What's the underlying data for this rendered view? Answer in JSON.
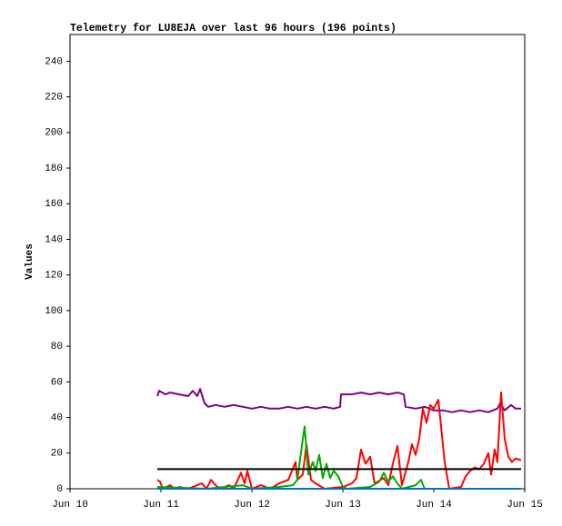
{
  "chart_data": {
    "type": "line",
    "title": "Telemetry for LU8EJA over last 96 hours (196 points)",
    "y_label": "Values",
    "xlim": [
      10,
      15
    ],
    "xticks": [
      {
        "value": 10,
        "label": "Jun 10"
      },
      {
        "value": 11,
        "label": "Jun 11"
      },
      {
        "value": 12,
        "label": "Jun 12"
      },
      {
        "value": 13,
        "label": "Jun 13"
      },
      {
        "value": 14,
        "label": "Jun 14"
      },
      {
        "value": 15,
        "label": "Jun 15"
      }
    ],
    "ylim": [
      0,
      255
    ],
    "yticks": [
      0,
      20,
      40,
      60,
      80,
      100,
      120,
      140,
      160,
      180,
      200,
      220,
      240
    ],
    "grid": false,
    "series": [
      {
        "color": "#800080",
        "x": [
          10.96,
          10.98,
          11.05,
          11.1,
          11.2,
          11.3,
          11.35,
          11.4,
          11.43,
          11.48,
          11.52,
          11.6,
          11.7,
          11.8,
          11.9,
          12.0,
          12.1,
          12.2,
          12.3,
          12.4,
          12.5,
          12.6,
          12.7,
          12.8,
          12.9,
          12.97,
          12.98,
          13.1,
          13.2,
          13.3,
          13.4,
          13.5,
          13.6,
          13.67,
          13.69,
          13.8,
          13.9,
          14.0,
          14.1,
          14.2,
          14.3,
          14.4,
          14.5,
          14.6,
          14.7,
          14.73,
          14.78,
          14.85,
          14.9,
          14.96
        ],
        "values": [
          52,
          55,
          53,
          54,
          53,
          52,
          55,
          52,
          56,
          48,
          46,
          47,
          46,
          47,
          46,
          45,
          46,
          45,
          45,
          46,
          45,
          46,
          45,
          46,
          45,
          46,
          53,
          53,
          54,
          53,
          54,
          53,
          54,
          53,
          46,
          45,
          46,
          44,
          44,
          43,
          44,
          43,
          44,
          43,
          45,
          48,
          44,
          47,
          45,
          45
        ]
      },
      {
        "color": "#ff0000",
        "x": [
          10.96,
          10.99,
          11.02,
          11.1,
          11.15,
          11.2,
          11.3,
          11.45,
          11.5,
          11.55,
          11.6,
          11.65,
          11.75,
          11.8,
          11.88,
          11.92,
          11.95,
          12.0,
          12.1,
          12.2,
          12.3,
          12.4,
          12.48,
          12.5,
          12.56,
          12.6,
          12.65,
          12.7,
          12.8,
          13.0,
          13.1,
          13.15,
          13.2,
          13.25,
          13.3,
          13.35,
          13.45,
          13.5,
          13.55,
          13.6,
          13.65,
          13.72,
          13.76,
          13.8,
          13.84,
          13.88,
          13.92,
          13.96,
          14.0,
          14.05,
          14.08,
          14.12,
          14.17,
          14.3,
          14.35,
          14.4,
          14.45,
          14.5,
          14.55,
          14.6,
          14.63,
          14.67,
          14.7,
          14.74,
          14.78,
          14.82,
          14.86,
          14.9,
          14.96
        ],
        "values": [
          5,
          4,
          0,
          2,
          0,
          1,
          0,
          3,
          0,
          5,
          2,
          0,
          2,
          0,
          9,
          3,
          10,
          0,
          2,
          0,
          3,
          5,
          15,
          5,
          8,
          25,
          5,
          3,
          0,
          1,
          3,
          6,
          22,
          14,
          18,
          3,
          6,
          2,
          14,
          24,
          2,
          15,
          25,
          19,
          28,
          45,
          37,
          47,
          45,
          50,
          35,
          15,
          0,
          1,
          7,
          10,
          12,
          11,
          14,
          20,
          8,
          22,
          15,
          54,
          28,
          18,
          15,
          17,
          16
        ]
      },
      {
        "color": "#00aa00",
        "x": [
          10.96,
          11.5,
          11.9,
          12.0,
          12.3,
          12.45,
          12.5,
          12.56,
          12.58,
          12.62,
          12.67,
          12.7,
          12.74,
          12.78,
          12.82,
          12.86,
          12.9,
          12.95,
          13.0,
          13.05,
          13.3,
          13.4,
          13.45,
          13.5,
          13.55,
          13.6,
          13.65,
          13.8,
          13.86,
          13.9,
          14.96
        ],
        "values": [
          1,
          0,
          2,
          0,
          1,
          2,
          5,
          28,
          35,
          8,
          15,
          10,
          19,
          6,
          14,
          6,
          10,
          7,
          1,
          0,
          1,
          4,
          9,
          4,
          7,
          3,
          0,
          2,
          5,
          0,
          0
        ]
      },
      {
        "color": "#000000",
        "x": [
          10.96,
          14.96
        ],
        "values": [
          11,
          11
        ]
      },
      {
        "color": "#0070c0",
        "x": [
          10.96,
          14.96
        ],
        "values": [
          0,
          0
        ]
      }
    ]
  }
}
